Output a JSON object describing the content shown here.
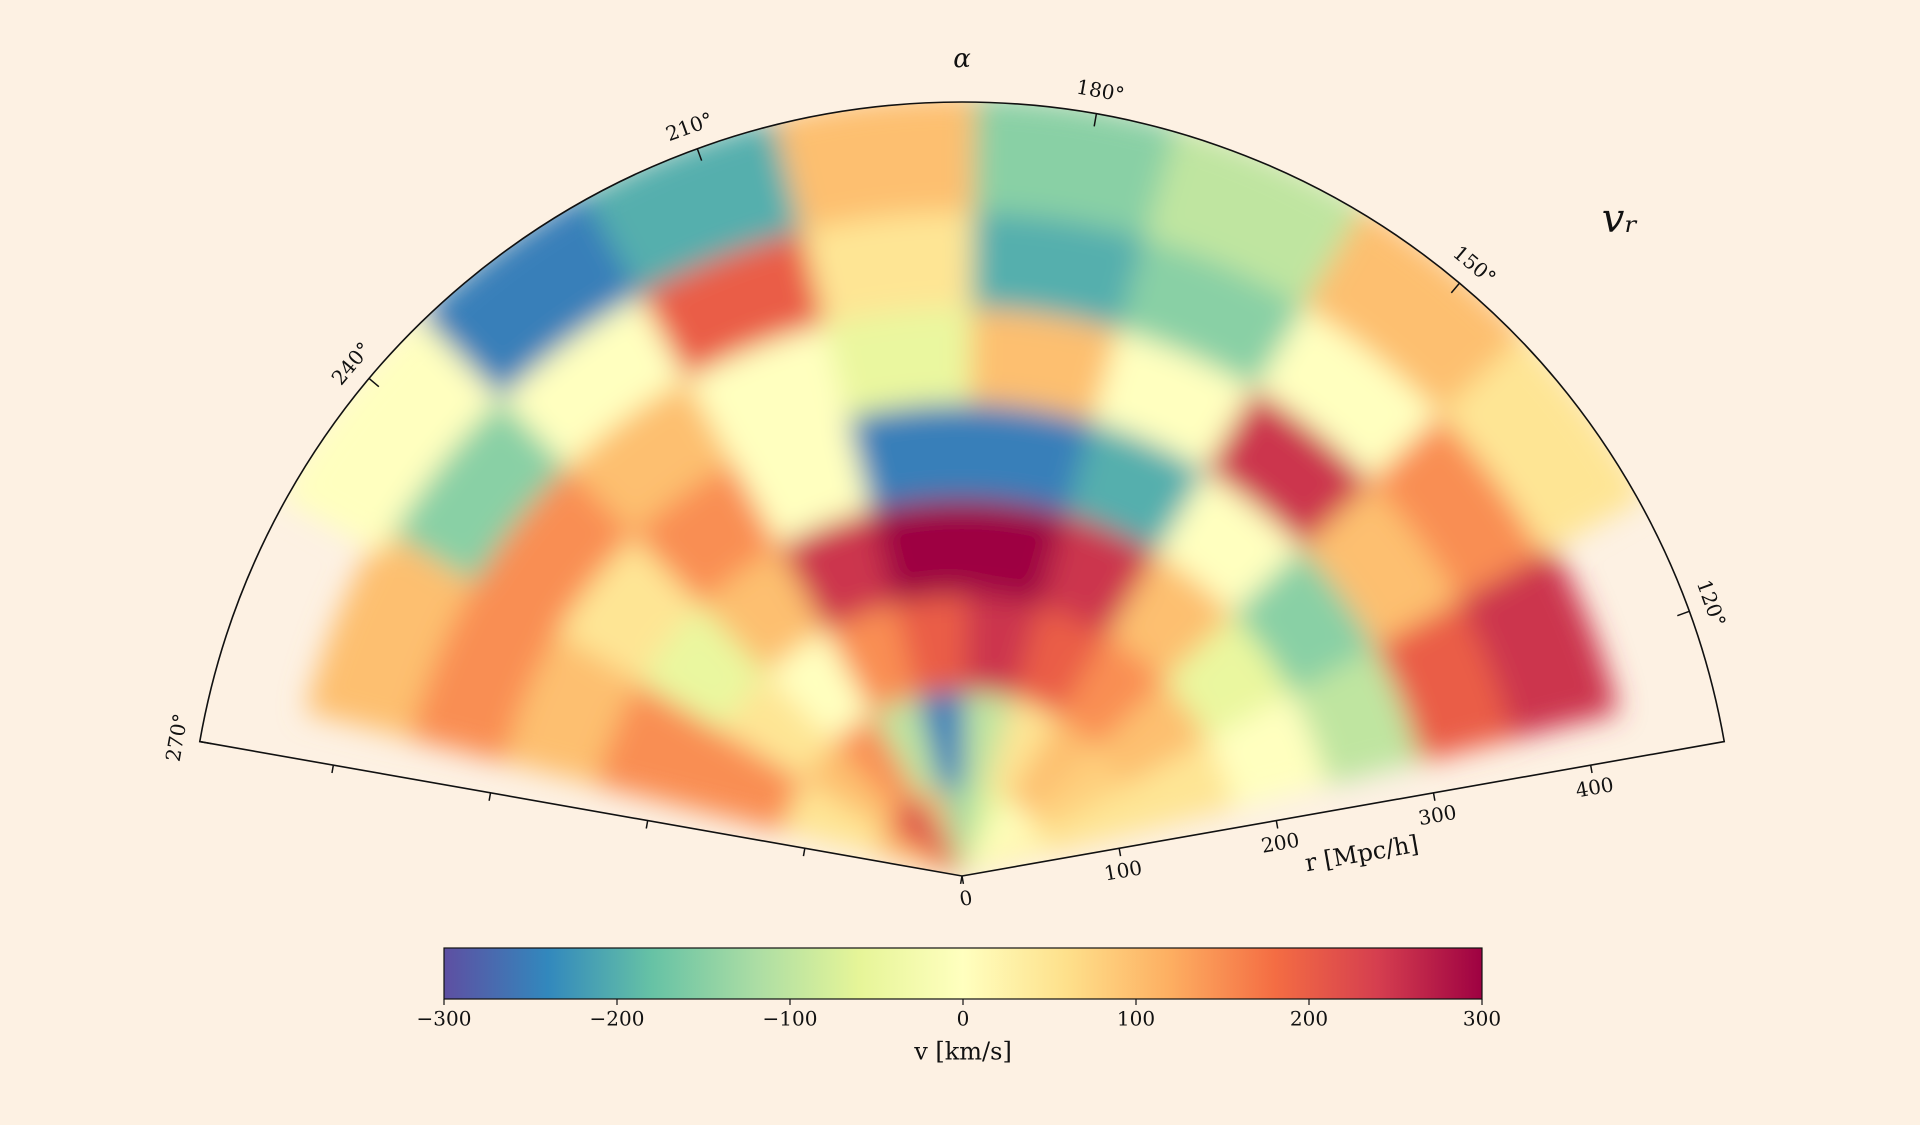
{
  "chart_data": {
    "type": "polar-field",
    "title": "vᵣ",
    "theta_label": "α",
    "r_label": "r [Mpc/h]",
    "colorbar_label": "v [km/s]",
    "thetalim": [
      110,
      270
    ],
    "rlim": [
      0,
      485
    ],
    "thetaticks": [
      {
        "value": 120,
        "label": "120°"
      },
      {
        "value": 150,
        "label": "150°"
      },
      {
        "value": 180,
        "label": "180°"
      },
      {
        "value": 210,
        "label": "210°"
      },
      {
        "value": 240,
        "label": "240°"
      },
      {
        "value": 270,
        "label": "270°"
      }
    ],
    "rticks": [
      0,
      100,
      200,
      300,
      400
    ],
    "clim": [
      -300,
      300
    ],
    "cticks": [
      {
        "value": -300,
        "label": "−300"
      },
      {
        "value": -200,
        "label": "−200"
      },
      {
        "value": -100,
        "label": "−100"
      },
      0,
      100,
      200,
      300
    ],
    "colormap": [
      "#5e4fa2",
      "#3288bd",
      "#66c2a5",
      "#abdda4",
      "#e6f598",
      "#ffffbf",
      "#fee08b",
      "#fdae61",
      "#f46d43",
      "#d53e4f",
      "#9e0142"
    ],
    "r_bins": [
      0,
      60,
      120,
      180,
      240,
      300,
      360,
      420,
      485
    ],
    "theta_bins": [
      115,
      130,
      145,
      160,
      175,
      190,
      205,
      220,
      235,
      250,
      265
    ],
    "values": [
      [
        20,
        10,
        0,
        -50,
        -100,
        -150,
        100,
        250,
        200,
        100
      ],
      [
        50,
        80,
        100,
        50,
        -100,
        -250,
        -100,
        150,
        100,
        50
      ],
      [
        50,
        100,
        150,
        200,
        250,
        200,
        150,
        0,
        50,
        150
      ],
      [
        0,
        -50,
        100,
        250,
        300,
        300,
        250,
        100,
        -50,
        150
      ],
      [
        -100,
        -150,
        0,
        -200,
        -250,
        -250,
        0,
        150,
        50,
        100
      ],
      [
        200,
        100,
        250,
        0,
        100,
        -50,
        0,
        100,
        150,
        150
      ],
      [
        250,
        150,
        0,
        -150,
        -200,
        50,
        200,
        0,
        -150,
        100
      ],
      [
        null,
        50,
        100,
        -100,
        -150,
        100,
        -200,
        -250,
        0,
        null
      ]
    ]
  }
}
